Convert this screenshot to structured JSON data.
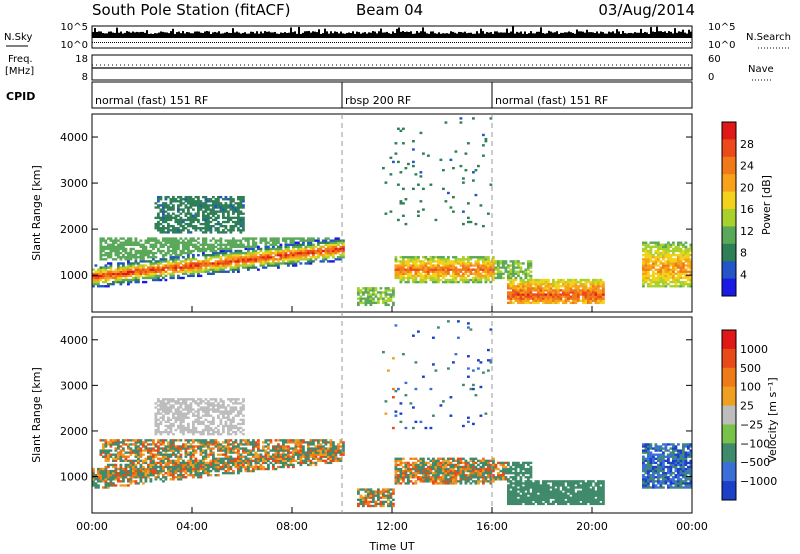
{
  "header": {
    "station": "South Pole Station (fitACF)",
    "beam": "Beam 04",
    "date": "03/Aug/2014"
  },
  "small_panels": {
    "nsky_label": "N.Sky",
    "nsearch_label": "N.Search",
    "freq_label_1": "Freq.",
    "freq_label_2": "[MHz]",
    "nave_label": "Nave",
    "cpid_label": "CPID",
    "noise_top_tick": "10^5",
    "noise_bottom_tick": "10^0",
    "freq_top_tick": "18",
    "freq_bottom_tick": "8",
    "nave_top_tick": "60",
    "nave_bottom_tick": "0"
  },
  "cpid_segments": [
    {
      "label": "normal (fast) 151 RF",
      "start_hr": 0,
      "end_hr": 10
    },
    {
      "label": "rbsp 200 RF",
      "start_hr": 10,
      "end_hr": 16
    },
    {
      "label": "normal (fast) 151 RF",
      "start_hr": 16,
      "end_hr": 24
    }
  ],
  "chart_data": [
    {
      "type": "heatmap",
      "name": "power",
      "ylabel": "Slant Range [km]",
      "xlabel": "Time UT",
      "x_ticks": [
        "00:00",
        "04:00",
        "08:00",
        "12:00",
        "16:00",
        "20:00",
        "00:00"
      ],
      "x_range_hours": [
        0,
        24
      ],
      "y_ticks": [
        1000,
        2000,
        3000,
        4000
      ],
      "y_range_km": [
        200,
        4500
      ],
      "colorbar_label": "Power [dB]",
      "colorbar_ticks": [
        "28",
        "24",
        "20",
        "16",
        "12",
        "8",
        "4"
      ],
      "colors": [
        "#1a1ae6",
        "#2255c8",
        "#2f7f56",
        "#5aa85a",
        "#a8d12e",
        "#f2d21a",
        "#f7a21a",
        "#f07a1a",
        "#ec4a1a",
        "#e01818"
      ]
    },
    {
      "type": "heatmap",
      "name": "velocity",
      "ylabel": "Slant Range [km]",
      "xlabel": "Time UT",
      "x_ticks": [
        "00:00",
        "04:00",
        "08:00",
        "12:00",
        "16:00",
        "20:00",
        "00:00"
      ],
      "x_range_hours": [
        0,
        24
      ],
      "y_ticks": [
        1000,
        2000,
        3000,
        4000
      ],
      "y_range_km": [
        200,
        4500
      ],
      "colorbar_label": "Velocity [m s⁻¹]",
      "colorbar_ticks": [
        "1000",
        "500",
        "100",
        "25",
        "−25",
        "−100",
        "−500",
        "−1000"
      ],
      "colors": [
        "#1c3fc8",
        "#3a6fd8",
        "#3e8a6a",
        "#79c24a",
        "#bdbdbd",
        "#f0a020",
        "#ef7a18",
        "#e84a18",
        "#e01818"
      ]
    }
  ],
  "marker_hours": [
    10,
    16
  ]
}
